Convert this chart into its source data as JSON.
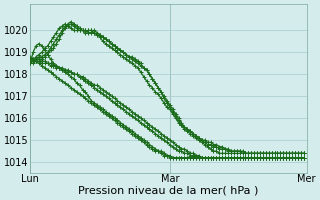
{
  "background_color": "#d4ecec",
  "plot_bg_color": "#d4ecec",
  "grid_color": "#a8cccc",
  "line_color": "#1a6b1a",
  "ylim": [
    1013.5,
    1021.2
  ],
  "yticks": [
    1014,
    1015,
    1016,
    1017,
    1018,
    1019,
    1020
  ],
  "xlabel": "Pression niveau de la mer( hPa )",
  "xlabel_fontsize": 8,
  "xtick_labels": [
    "Lun",
    "Mar",
    "Mer"
  ],
  "xtick_positions": [
    0,
    48,
    95
  ],
  "vline_positions": [
    0,
    48,
    95
  ],
  "series": [
    [
      1018.5,
      1018.6,
      1018.8,
      1018.9,
      1019.0,
      1019.2,
      1019.3,
      1019.5,
      1019.7,
      1019.9,
      1020.1,
      1020.2,
      1020.3,
      1020.2,
      1020.1,
      1020.0,
      1020.0,
      1020.0,
      1020.0,
      1019.9,
      1020.0,
      1020.0,
      1019.9,
      1019.8,
      1019.7,
      1019.5,
      1019.4,
      1019.3,
      1019.2,
      1019.1,
      1019.0,
      1018.9,
      1018.8,
      1018.7,
      1018.6,
      1018.5,
      1018.4,
      1018.3,
      1018.1,
      1017.9,
      1017.7,
      1017.5,
      1017.4,
      1017.2,
      1017.1,
      1016.9,
      1016.7,
      1016.5,
      1016.4,
      1016.2,
      1016.0,
      1015.8,
      1015.7,
      1015.5,
      1015.4,
      1015.3,
      1015.2,
      1015.1,
      1015.0,
      1014.9,
      1014.8,
      1014.7,
      1014.6,
      1014.5,
      1014.5,
      1014.4,
      1014.4,
      1014.4,
      1014.4,
      1014.4,
      1014.4,
      1014.4,
      1014.4,
      1014.4,
      1014.4,
      1014.4,
      1014.4,
      1014.4,
      1014.4,
      1014.4,
      1014.4,
      1014.4,
      1014.4,
      1014.4,
      1014.4,
      1014.4,
      1014.4,
      1014.4,
      1014.4,
      1014.4,
      1014.4,
      1014.4,
      1014.4,
      1014.4,
      1014.4
    ],
    [
      1018.5,
      1018.5,
      1018.6,
      1018.7,
      1018.7,
      1018.8,
      1018.9,
      1019.1,
      1019.2,
      1019.4,
      1019.6,
      1019.9,
      1020.1,
      1020.2,
      1020.3,
      1020.2,
      1020.1,
      1020.0,
      1020.0,
      1020.0,
      1020.0,
      1020.0,
      1020.0,
      1019.9,
      1019.8,
      1019.7,
      1019.6,
      1019.5,
      1019.4,
      1019.3,
      1019.2,
      1019.1,
      1019.0,
      1018.9,
      1018.8,
      1018.8,
      1018.7,
      1018.6,
      1018.5,
      1018.3,
      1018.2,
      1018.0,
      1017.8,
      1017.6,
      1017.4,
      1017.2,
      1017.0,
      1016.8,
      1016.6,
      1016.4,
      1016.2,
      1016.0,
      1015.8,
      1015.6,
      1015.5,
      1015.4,
      1015.3,
      1015.2,
      1015.1,
      1015.0,
      1014.9,
      1014.8,
      1014.8,
      1014.7,
      1014.7,
      1014.6,
      1014.6,
      1014.6,
      1014.5,
      1014.5,
      1014.5,
      1014.5,
      1014.5,
      1014.4,
      1014.4,
      1014.4,
      1014.4,
      1014.4,
      1014.4,
      1014.4,
      1014.4,
      1014.4,
      1014.4,
      1014.4,
      1014.4,
      1014.4,
      1014.4,
      1014.4,
      1014.4,
      1014.4,
      1014.4,
      1014.4,
      1014.4,
      1014.4,
      1014.4
    ],
    [
      1018.6,
      1018.6,
      1018.7,
      1018.8,
      1018.8,
      1018.9,
      1019.0,
      1019.2,
      1019.4,
      1019.6,
      1019.8,
      1020.0,
      1020.2,
      1020.3,
      1020.4,
      1020.3,
      1020.2,
      1020.1,
      1020.0,
      1020.0,
      1019.9,
      1019.9,
      1019.9,
      1019.8,
      1019.8,
      1019.7,
      1019.6,
      1019.5,
      1019.4,
      1019.3,
      1019.2,
      1019.1,
      1019.0,
      1018.9,
      1018.8,
      1018.7,
      1018.6,
      1018.5,
      1018.4,
      1018.3,
      1018.2,
      1018.0,
      1017.8,
      1017.6,
      1017.4,
      1017.2,
      1016.9,
      1016.7,
      1016.5,
      1016.3,
      1016.1,
      1015.9,
      1015.7,
      1015.6,
      1015.5,
      1015.4,
      1015.3,
      1015.2,
      1015.1,
      1015.0,
      1015.0,
      1014.9,
      1014.9,
      1014.8,
      1014.8,
      1014.7,
      1014.7,
      1014.6,
      1014.6,
      1014.5,
      1014.5,
      1014.5,
      1014.5,
      1014.5,
      1014.4,
      1014.4,
      1014.4,
      1014.4,
      1014.4,
      1014.4,
      1014.4,
      1014.4,
      1014.4,
      1014.4,
      1014.4,
      1014.4,
      1014.4,
      1014.4,
      1014.4,
      1014.4,
      1014.4,
      1014.4,
      1014.4,
      1014.4,
      1014.4
    ],
    [
      1018.7,
      1018.6,
      1018.6,
      1018.6,
      1018.5,
      1018.5,
      1018.5,
      1018.4,
      1018.4,
      1018.3,
      1018.3,
      1018.2,
      1018.2,
      1018.1,
      1018.1,
      1018.0,
      1018.0,
      1017.9,
      1017.9,
      1017.8,
      1017.7,
      1017.6,
      1017.5,
      1017.5,
      1017.4,
      1017.3,
      1017.2,
      1017.1,
      1017.0,
      1016.9,
      1016.8,
      1016.7,
      1016.6,
      1016.5,
      1016.4,
      1016.3,
      1016.2,
      1016.1,
      1016.0,
      1015.9,
      1015.8,
      1015.7,
      1015.6,
      1015.5,
      1015.4,
      1015.3,
      1015.2,
      1015.1,
      1015.0,
      1014.9,
      1014.8,
      1014.7,
      1014.6,
      1014.6,
      1014.5,
      1014.4,
      1014.4,
      1014.3,
      1014.3,
      1014.2,
      1014.2,
      1014.2,
      1014.2,
      1014.2,
      1014.2,
      1014.2,
      1014.2,
      1014.2,
      1014.2,
      1014.2,
      1014.2,
      1014.2,
      1014.2,
      1014.2,
      1014.2,
      1014.2,
      1014.2,
      1014.2,
      1014.2,
      1014.2,
      1014.2,
      1014.2,
      1014.2,
      1014.2,
      1014.2,
      1014.2,
      1014.2,
      1014.2,
      1014.2,
      1014.2,
      1014.2,
      1014.2,
      1014.2,
      1014.2,
      1014.2
    ],
    [
      1018.8,
      1018.7,
      1018.7,
      1018.7,
      1018.6,
      1018.6,
      1018.5,
      1018.5,
      1018.4,
      1018.4,
      1018.3,
      1018.3,
      1018.2,
      1018.2,
      1018.1,
      1018.0,
      1018.0,
      1017.9,
      1017.8,
      1017.7,
      1017.6,
      1017.5,
      1017.4,
      1017.3,
      1017.2,
      1017.1,
      1017.0,
      1016.9,
      1016.8,
      1016.7,
      1016.6,
      1016.5,
      1016.4,
      1016.3,
      1016.2,
      1016.1,
      1016.0,
      1015.9,
      1015.8,
      1015.7,
      1015.6,
      1015.5,
      1015.4,
      1015.3,
      1015.2,
      1015.1,
      1015.0,
      1014.9,
      1014.8,
      1014.7,
      1014.6,
      1014.5,
      1014.5,
      1014.4,
      1014.4,
      1014.3,
      1014.3,
      1014.3,
      1014.2,
      1014.2,
      1014.2,
      1014.2,
      1014.2,
      1014.2,
      1014.2,
      1014.2,
      1014.2,
      1014.2,
      1014.2,
      1014.2,
      1014.2,
      1014.2,
      1014.2,
      1014.2,
      1014.2,
      1014.2,
      1014.2,
      1014.2,
      1014.2,
      1014.2,
      1014.2,
      1014.2,
      1014.2,
      1014.2,
      1014.2,
      1014.2,
      1014.2,
      1014.2,
      1014.2,
      1014.2,
      1014.2,
      1014.2,
      1014.2,
      1014.2,
      1014.2
    ],
    [
      1018.7,
      1018.7,
      1018.6,
      1018.5,
      1018.4,
      1018.3,
      1018.2,
      1018.1,
      1018.0,
      1017.9,
      1017.8,
      1017.7,
      1017.6,
      1017.5,
      1017.4,
      1017.3,
      1017.2,
      1017.1,
      1017.0,
      1016.9,
      1016.8,
      1016.7,
      1016.6,
      1016.5,
      1016.4,
      1016.3,
      1016.2,
      1016.1,
      1016.0,
      1015.9,
      1015.8,
      1015.7,
      1015.6,
      1015.5,
      1015.4,
      1015.3,
      1015.2,
      1015.1,
      1015.0,
      1014.9,
      1014.8,
      1014.7,
      1014.6,
      1014.5,
      1014.5,
      1014.4,
      1014.3,
      1014.3,
      1014.2,
      1014.2,
      1014.2,
      1014.2,
      1014.2,
      1014.2,
      1014.2,
      1014.2,
      1014.2,
      1014.2,
      1014.2,
      1014.2,
      1014.2,
      1014.2,
      1014.2,
      1014.2,
      1014.2,
      1014.2,
      1014.2,
      1014.2,
      1014.2,
      1014.2,
      1014.2,
      1014.2,
      1014.2,
      1014.2,
      1014.2,
      1014.2,
      1014.2,
      1014.2,
      1014.2,
      1014.2,
      1014.2,
      1014.2,
      1014.2,
      1014.2,
      1014.2,
      1014.2,
      1014.2,
      1014.2,
      1014.2,
      1014.2,
      1014.2,
      1014.2,
      1014.2,
      1014.2,
      1014.2
    ],
    [
      1018.5,
      1019.0,
      1019.3,
      1019.4,
      1019.3,
      1019.1,
      1018.9,
      1018.7,
      1018.5,
      1018.4,
      1018.3,
      1018.2,
      1018.1,
      1018.0,
      1017.9,
      1017.8,
      1017.6,
      1017.5,
      1017.3,
      1017.2,
      1017.0,
      1016.8,
      1016.7,
      1016.6,
      1016.5,
      1016.4,
      1016.3,
      1016.2,
      1016.1,
      1016.0,
      1015.9,
      1015.8,
      1015.7,
      1015.6,
      1015.5,
      1015.4,
      1015.3,
      1015.2,
      1015.1,
      1015.0,
      1014.9,
      1014.8,
      1014.7,
      1014.6,
      1014.5,
      1014.5,
      1014.4,
      1014.3,
      1014.3,
      1014.2,
      1014.2,
      1014.2,
      1014.2,
      1014.2,
      1014.2,
      1014.2,
      1014.2,
      1014.2,
      1014.2,
      1014.2,
      1014.2,
      1014.2,
      1014.2,
      1014.2,
      1014.2,
      1014.2,
      1014.2,
      1014.2,
      1014.2,
      1014.2,
      1014.2,
      1014.2,
      1014.2,
      1014.2,
      1014.2,
      1014.2,
      1014.2,
      1014.2,
      1014.2,
      1014.2,
      1014.2,
      1014.2,
      1014.2,
      1014.2,
      1014.2,
      1014.2,
      1014.2,
      1014.2,
      1014.2,
      1014.2,
      1014.2,
      1014.2,
      1014.2,
      1014.2,
      1014.2
    ]
  ],
  "marker_size": 3,
  "line_width": 0.9,
  "tick_fontsize": 7,
  "figsize": [
    3.2,
    2.0
  ],
  "dpi": 100
}
